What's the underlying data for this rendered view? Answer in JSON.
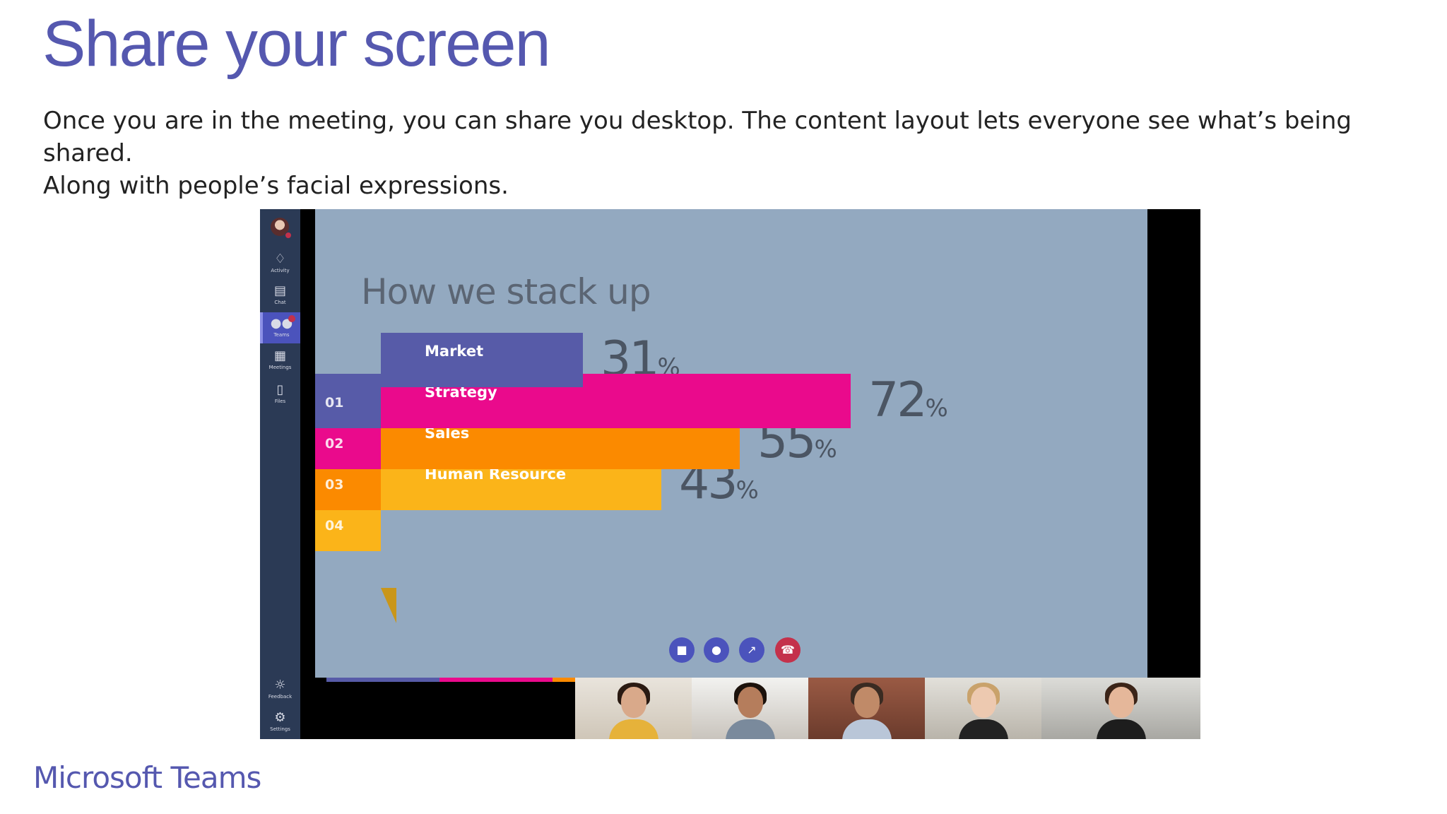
{
  "slide": {
    "title": "Share your screen",
    "description_line1": "Once you are in the meeting, you can share you desktop. The content layout lets everyone see what’s being shared.",
    "description_line2": "Along with people’s facial expressions.",
    "brand": "Microsoft Teams"
  },
  "rail": {
    "items": [
      {
        "label": "Activity",
        "icon": "bell-icon"
      },
      {
        "label": "Chat",
        "icon": "chat-icon"
      },
      {
        "label": "Teams",
        "icon": "teams-icon"
      },
      {
        "label": "Meetings",
        "icon": "calendar-icon"
      },
      {
        "label": "Files",
        "icon": "file-icon"
      },
      {
        "label": "Feedback",
        "icon": "lightbulb-icon"
      },
      {
        "label": "Settings",
        "icon": "gear-icon"
      }
    ]
  },
  "presentation": {
    "title": "How we stack up",
    "bars": [
      {
        "label": "Market",
        "value": 31,
        "number": "01",
        "color": "#575ba8"
      },
      {
        "label": "Strategy",
        "value": 72,
        "number": "02",
        "color": "#ea0a8c"
      },
      {
        "label": "Sales",
        "value": 55,
        "number": "03",
        "color": "#fb8a00"
      },
      {
        "label": "Human Resource",
        "value": 43,
        "number": "04",
        "color": "#fbb419"
      }
    ],
    "percent_sign": "%"
  },
  "controls": {
    "camera": "camera-icon",
    "mic": "microphone-icon",
    "share": "share-screen-icon",
    "hangup": "hang-up-icon"
  },
  "colors": {
    "brand": "#5558af",
    "rail": "#2b3a55",
    "stage": "#93a9c0"
  }
}
